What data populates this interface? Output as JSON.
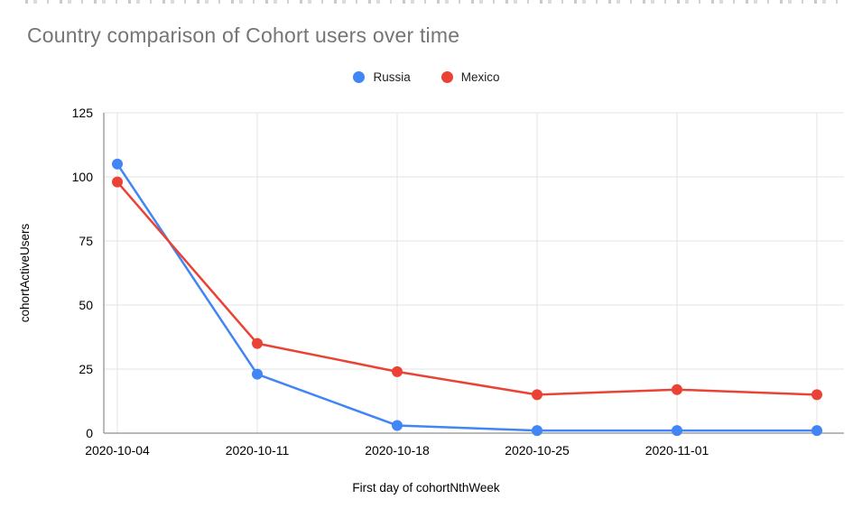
{
  "page": {
    "background": "#ffffff"
  },
  "chart_data": {
    "type": "line",
    "title": "Country comparison of Cohort users over time",
    "xlabel": "First day of cohortNthWeek",
    "ylabel": "cohortActiveUsers",
    "x": [
      "2020-10-04",
      "2020-10-11",
      "2020-10-18",
      "2020-10-25",
      "2020-11-01",
      ""
    ],
    "series": [
      {
        "name": "Russia",
        "color": "#4285F4",
        "values": [
          105,
          23,
          3,
          1,
          1,
          1
        ]
      },
      {
        "name": "Mexico",
        "color": "#EA4335",
        "values": [
          98,
          35,
          24,
          15,
          17,
          15
        ]
      }
    ],
    "ylim": [
      0,
      125
    ],
    "yticks": [
      0,
      25,
      50,
      75,
      100,
      125
    ],
    "grid": true,
    "legend_position": "top-center",
    "colors": {
      "grid": "#e3e3e3",
      "axis": "#757575",
      "tick_text": "#000000",
      "title": "#757575"
    }
  }
}
